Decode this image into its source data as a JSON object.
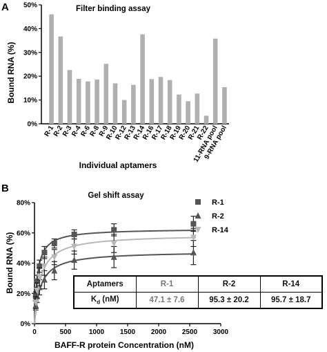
{
  "chart_data": [
    {
      "panel": "A",
      "type": "bar",
      "title": "Filter binding assay",
      "xlabel": "Individual aptamers",
      "ylabel": "Bound RNA (%)",
      "ylim": [
        0,
        50
      ],
      "yticks": [
        "0%",
        "10%",
        "20%",
        "30%",
        "40%",
        "50%"
      ],
      "grid": false,
      "bar_color": "#b0b0b0",
      "categories": [
        "R-1",
        "R-2",
        "R-3",
        "R-4",
        "R-6",
        "R-8",
        "R-9",
        "R-10",
        "R-12",
        "R-13",
        "R-14",
        "R-16",
        "R-17",
        "R-18",
        "R-19",
        "R-20",
        "R-21",
        "R-22",
        "11-RNA pool",
        "9-RNA pool"
      ],
      "values": [
        46,
        36.7,
        22.6,
        18.9,
        17.8,
        18.6,
        25.2,
        17,
        10,
        16.4,
        37.6,
        18.8,
        19.7,
        18.4,
        12.3,
        9.5,
        12.7,
        3.4,
        35.8,
        15.4
      ]
    },
    {
      "panel": "B",
      "type": "scatter",
      "title": "Gel shift assay",
      "xlabel": "BAFF-R protein Concentration (nM)",
      "ylabel": "Bound RNA (%)",
      "xlim": [
        0,
        3000
      ],
      "ylim": [
        0,
        80
      ],
      "xticks": [
        "0",
        "500",
        "1000",
        "1500",
        "2000",
        "2500",
        "3000"
      ],
      "yticks": [
        "0%",
        "20%",
        "40%",
        "60%",
        "80%"
      ],
      "grid": false,
      "legend_position": "top-right",
      "series": [
        {
          "name": "R-1",
          "marker": "square",
          "color": "#555555",
          "fit": {
            "bmax": 62.8,
            "kd": 47.1
          },
          "x": [
            20,
            40,
            80,
            160,
            320,
            640,
            1280,
            2560
          ],
          "y": [
            18,
            28,
            38,
            47,
            53,
            59,
            62,
            66
          ],
          "err": [
            3,
            4,
            4,
            4,
            3,
            3,
            4,
            5
          ]
        },
        {
          "name": "R-2",
          "marker": "triangle",
          "color": "#555555",
          "fit": {
            "bmax": 47.8,
            "kd": 95.3
          },
          "x": [
            20,
            40,
            80,
            160,
            320,
            640,
            1280,
            2560
          ],
          "y": [
            12,
            18,
            24,
            29,
            35,
            42,
            44,
            47
          ],
          "err": [
            3,
            4,
            5,
            6,
            6,
            6,
            7,
            8
          ]
        },
        {
          "name": "R-14",
          "marker": "triangle-down",
          "color": "#b8b8b8",
          "fit": {
            "bmax": 59,
            "kd": 95.7
          },
          "x": [
            20,
            40,
            80,
            160,
            320,
            640,
            1280,
            2560
          ],
          "y": [
            14,
            22,
            31,
            38,
            44,
            51,
            53,
            57
          ],
          "err": [
            4,
            5,
            6,
            6,
            5,
            5,
            6,
            6
          ]
        }
      ],
      "table": {
        "header": [
          "Aptamers",
          "R-1",
          "R-2",
          "R-14"
        ],
        "row": [
          "Kd (nM)",
          "47.1 ± 7.6",
          "95.3 ± 20.2",
          "95.7 ± 18.7"
        ]
      }
    }
  ],
  "panel_labels": {
    "a": "A",
    "b": "B"
  },
  "table_header_label": "Aptamers",
  "table_row_label": "K",
  "table_row_label_sub": "d",
  "table_row_label_unit": " (nM)"
}
